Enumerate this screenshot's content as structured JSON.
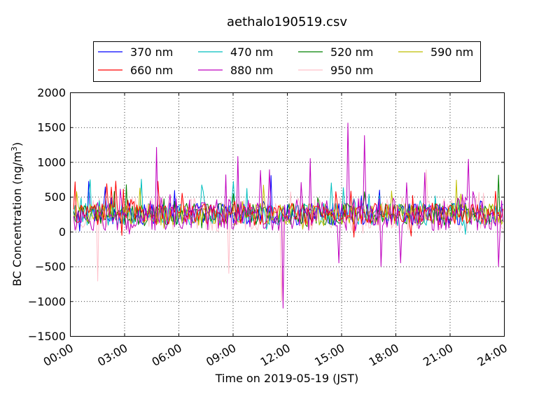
{
  "chart_data": {
    "type": "line",
    "title": "aethalo190519.csv",
    "xlabel": "Time on 2019-05-19 (JST)",
    "ylabel_main": "BC Concentration (ng/m",
    "ylabel_sup": "3",
    "ylabel_close": ")",
    "xlim_hours": [
      0,
      24
    ],
    "ylim": [
      -1500,
      2000
    ],
    "yticks": [
      -1500,
      -1000,
      -500,
      0,
      500,
      1000,
      1500,
      2000
    ],
    "ytick_labels": [
      "−1500",
      "−1000",
      "−500",
      "0",
      "500",
      "1000",
      "1500",
      "2000"
    ],
    "xticks_hours": [
      0,
      3,
      6,
      9,
      12,
      15,
      18,
      21,
      24
    ],
    "xtick_labels": [
      "00:00",
      "03:00",
      "06:00",
      "09:00",
      "12:00",
      "15:00",
      "18:00",
      "21:00",
      "24:00"
    ],
    "grid": true,
    "legend_position": "above plot, 4 columns",
    "series": [
      {
        "name": "370 nm",
        "color": "#0000ff"
      },
      {
        "name": "470 nm",
        "color": "#00bfbf"
      },
      {
        "name": "520 nm",
        "color": "#008000"
      },
      {
        "name": "590 nm",
        "color": "#bfbf00"
      },
      {
        "name": "660 nm",
        "color": "#ff0000"
      },
      {
        "name": "880 nm",
        "color": "#bf00bf"
      },
      {
        "name": "950 nm",
        "color": "#ffc0cb"
      }
    ],
    "sample_interval_minutes": 5,
    "baseline_approx": 250,
    "noise_amplitude_approx": 200,
    "notable_points": [
      {
        "series": "880 nm",
        "hour": 4.75,
        "y": 1210
      },
      {
        "series": "880 nm",
        "hour": 9.25,
        "y": 1080
      },
      {
        "series": "880 nm",
        "hour": 10.5,
        "y": 880
      },
      {
        "series": "880 nm",
        "hour": 11.0,
        "y": 890
      },
      {
        "series": "880 nm",
        "hour": 11.75,
        "y": -1100
      },
      {
        "series": "950 nm",
        "hour": 11.7,
        "y": -1000
      },
      {
        "series": "880 nm",
        "hour": 13.25,
        "y": 1050
      },
      {
        "series": "880 nm",
        "hour": 14.9,
        "y": -450
      },
      {
        "series": "880 nm",
        "hour": 15.4,
        "y": 1560
      },
      {
        "series": "880 nm",
        "hour": 16.25,
        "y": 1380
      },
      {
        "series": "880 nm",
        "hour": 17.2,
        "y": -500
      },
      {
        "series": "880 nm",
        "hour": 18.3,
        "y": -450
      },
      {
        "series": "950 nm",
        "hour": 1.5,
        "y": -710
      },
      {
        "series": "950 nm",
        "hour": 8.75,
        "y": -600
      },
      {
        "series": "880 nm",
        "hour": 22.0,
        "y": 1040
      },
      {
        "series": "880 nm",
        "hour": 23.7,
        "y": -500
      },
      {
        "series": "590 nm",
        "hour": 24.0,
        "y": 620
      }
    ]
  }
}
